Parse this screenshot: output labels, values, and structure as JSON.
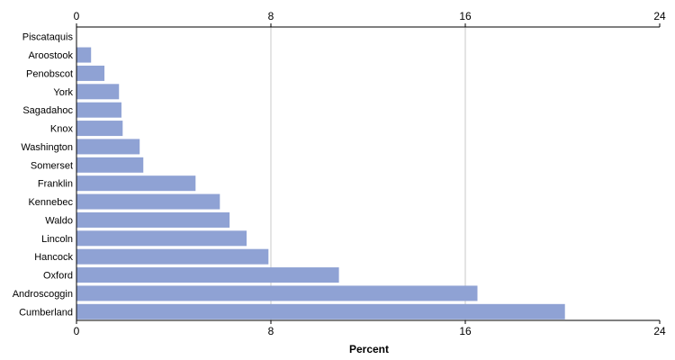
{
  "chart_data": {
    "type": "bar",
    "orientation": "horizontal",
    "categories": [
      "Piscataquis",
      "Aroostook",
      "Penobscot",
      "York",
      "Sagadahoc",
      "Knox",
      "Washington",
      "Somerset",
      "Franklin",
      "Kennebec",
      "Waldo",
      "Lincoln",
      "Hancock",
      "Oxford",
      "Androscoggin",
      "Cumberland"
    ],
    "values": [
      0.0,
      0.6,
      1.15,
      1.75,
      1.85,
      1.9,
      2.6,
      2.75,
      4.9,
      5.9,
      6.3,
      7.0,
      7.9,
      10.8,
      16.5,
      20.1
    ],
    "xlabel": "Percent",
    "ylabel": "",
    "xlim": [
      0,
      24
    ],
    "xticks": [
      "0",
      "8",
      "16",
      "24"
    ],
    "grid": true,
    "bar_color": "#8fa2d4"
  }
}
